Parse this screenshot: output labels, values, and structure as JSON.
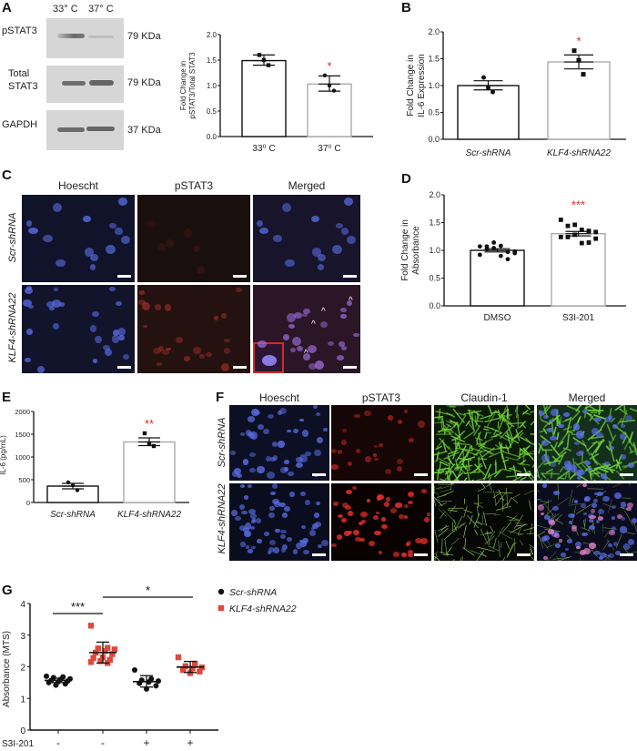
{
  "panels": {
    "A": {
      "letter": "A",
      "lane_labels": [
        "33° C",
        "37° C"
      ],
      "blots": [
        {
          "name": "pSTAT3",
          "label_lines": [
            "pSTAT3"
          ],
          "size": "79 KDa"
        },
        {
          "name": "Total STAT3",
          "label_lines": [
            "Total",
            "STAT3"
          ],
          "size": "79 KDa"
        },
        {
          "name": "GAPDH",
          "label_lines": [
            "GAPDH"
          ],
          "size": "37 KDa"
        }
      ]
    },
    "B": {
      "letter": "B"
    },
    "C": {
      "letter": "C",
      "columns": [
        "Hoescht",
        "pSTAT3",
        "Merged"
      ],
      "rows": [
        "Scr-shRNA",
        "KLF4-shRNA22"
      ]
    },
    "D": {
      "letter": "D"
    },
    "E": {
      "letter": "E"
    },
    "F": {
      "letter": "F",
      "columns": [
        "Hoescht",
        "pSTAT3",
        "Claudin-1",
        "Merged"
      ],
      "rows": [
        "Scr-shRNA",
        "KLF4-shRNA22"
      ]
    },
    "G": {
      "letter": "G"
    }
  },
  "colors": {
    "significance": "#d0342c",
    "bar_control_edge": "#111111",
    "bar_treated_edge": "#aaaaaa",
    "klf4_series": "#e0483c",
    "scr_series": "#111111",
    "hoechst": "#5a6ee6",
    "pstat3": "#e8302a",
    "claudin": "#6fd13a"
  },
  "chart_data": [
    {
      "id": "A",
      "type": "bar",
      "title": "",
      "categories": [
        "33⁰ C",
        "37⁰ C"
      ],
      "values": [
        1.49,
        1.03
      ],
      "errors": [
        [
          1.4,
          1.6
        ],
        [
          0.89,
          1.19
        ]
      ],
      "points": [
        [
          1.6,
          1.5,
          1.4
        ],
        [
          1.2,
          1.0,
          0.9
        ]
      ],
      "marker": [
        "square",
        "circle"
      ],
      "significance": [
        "",
        "*"
      ],
      "xlabel": "",
      "ylabel": "Fold Change in pSTAT3/Total STAT3",
      "ylim": [
        0,
        2.0
      ],
      "yticks": [
        "0.0",
        "0.5",
        "1.0",
        "1.5",
        "2.0"
      ],
      "grid": false
    },
    {
      "id": "B",
      "type": "bar",
      "title": "",
      "categories": [
        "Scr-shRNA",
        "KLF4-shRNA22"
      ],
      "values": [
        1.0,
        1.44
      ],
      "errors": [
        [
          0.92,
          1.09
        ],
        [
          1.31,
          1.57
        ]
      ],
      "points": [
        [
          1.15,
          0.96,
          0.88
        ],
        [
          1.65,
          1.47,
          1.21
        ]
      ],
      "marker": [
        "circle",
        "square"
      ],
      "significance": [
        "",
        "*"
      ],
      "xlabel": "",
      "ylabel": "Fold Change in IL-6 Expression",
      "ylim": [
        0,
        2.0
      ],
      "yticks": [
        "0.0",
        "0.5",
        "1.0",
        "1.5",
        "2.0"
      ],
      "grid": false
    },
    {
      "id": "D",
      "type": "bar",
      "title": "",
      "categories": [
        "DMSO",
        "S3I-201"
      ],
      "values": [
        1.0,
        1.3
      ],
      "errors": [
        [
          0.97,
          1.03
        ],
        [
          1.26,
          1.34
        ]
      ],
      "points": [
        [
          1.07,
          1.07,
          1.14,
          1.08,
          0.97,
          0.95,
          0.92,
          1.02,
          1.04,
          0.9,
          0.84,
          0.98
        ],
        [
          1.55,
          1.44,
          1.46,
          1.37,
          1.35,
          1.33,
          1.24,
          1.24,
          1.28,
          1.13,
          1.14,
          1.21
        ]
      ],
      "marker": [
        "circle",
        "square"
      ],
      "significance": [
        "",
        "***"
      ],
      "xlabel": "",
      "ylabel": "Fold Change in Absorbance",
      "ylim": [
        0,
        2.0
      ],
      "yticks": [
        "0.0",
        "0.5",
        "1.0",
        "1.5",
        "2.0"
      ],
      "grid": false
    },
    {
      "id": "E",
      "type": "bar",
      "title": "",
      "categories": [
        "Scr-shRNA",
        "KLF4-shRNA22"
      ],
      "values": [
        360,
        1330
      ],
      "errors": [
        [
          300,
          420
        ],
        [
          1250,
          1420
        ]
      ],
      "points": [
        [
          440,
          380,
          270
        ],
        [
          1520,
          1300,
          1240
        ]
      ],
      "marker": [
        "circle",
        "square"
      ],
      "significance": [
        "",
        "**"
      ],
      "xlabel": "",
      "ylabel": "IL-6 (pg/mL)",
      "ylim": [
        0,
        2000
      ],
      "yticks": [
        "0",
        "500",
        "1000",
        "1500",
        "2000"
      ],
      "grid": false
    },
    {
      "id": "G",
      "type": "scatter",
      "title": "",
      "categories": [
        "1",
        "2",
        "3",
        "4"
      ],
      "x_row_label": "S3I-201",
      "x_row_values": [
        "-",
        "-",
        "+",
        "+"
      ],
      "series": [
        {
          "name": "Scr-shRNA",
          "marker": "circle",
          "color": "#111111",
          "groups": [
            0,
            2
          ],
          "means": [
            1.57,
            1.53
          ],
          "errors": [
            [
              1.5,
              1.64
            ],
            [
              1.36,
              1.72
            ]
          ],
          "points": [
            [
              1.7,
              1.68,
              1.66,
              1.62,
              1.6,
              1.57,
              1.55,
              1.53,
              1.5,
              1.46,
              1.42
            ],
            [
              1.9,
              1.62,
              1.58,
              1.55,
              1.52,
              1.48,
              1.4,
              1.3
            ]
          ]
        },
        {
          "name": "KLF4-shRNA22",
          "marker": "square",
          "color": "#e0483c",
          "groups": [
            1,
            3
          ],
          "means": [
            2.45,
            1.99
          ],
          "errors": [
            [
              2.12,
              2.78
            ],
            [
              1.82,
              2.17
            ]
          ],
          "points": [
            [
              3.3,
              2.6,
              2.58,
              2.55,
              2.5,
              2.45,
              2.4,
              2.3,
              2.28,
              2.22,
              2.18,
              2.15,
              2.12
            ],
            [
              2.3,
              2.1,
              2.02,
              1.98,
              1.95,
              1.9,
              1.85,
              1.8
            ]
          ]
        }
      ],
      "comparisons": [
        {
          "from": 0,
          "to": 1,
          "label": "***"
        },
        {
          "from": 1,
          "to": 3,
          "label": "*"
        }
      ],
      "xlabel": "",
      "ylabel": "Absorbance (MTS)",
      "ylim": [
        0,
        4
      ],
      "yticks": [
        "0",
        "1",
        "2",
        "3",
        "4"
      ],
      "legend_position": "top-right",
      "grid": false
    }
  ]
}
